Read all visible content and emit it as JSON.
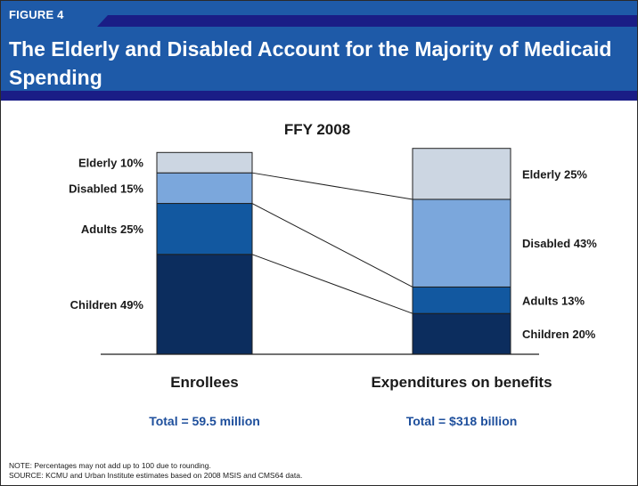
{
  "header": {
    "figure_label": "FIGURE 4",
    "title": "The Elderly and Disabled Account for the Majority of Medicaid Spending"
  },
  "chart_data": {
    "type": "bar",
    "stacked": true,
    "percent": true,
    "title": "FFY 2008",
    "categories": [
      "Enrollees",
      "Expenditures on benefits"
    ],
    "totals": [
      "Total = 59.5 million",
      "Total = $318 billion"
    ],
    "series": [
      {
        "name": "Children",
        "values": [
          49,
          20
        ],
        "color": "#0c2d5e"
      },
      {
        "name": "Adults",
        "values": [
          25,
          13
        ],
        "color": "#1258a0"
      },
      {
        "name": "Disabled",
        "values": [
          15,
          43
        ],
        "color": "#7ba7dc"
      },
      {
        "name": "Elderly",
        "values": [
          10,
          25
        ],
        "color": "#ccd6e2"
      }
    ],
    "labels": [
      [
        "Children 49%",
        "Adults 25%",
        "Disabled 15%",
        "Elderly 10%"
      ],
      [
        "Children 20%",
        "Adults 13%",
        "Disabled 43%",
        "Elderly 25%"
      ]
    ],
    "ylim": [
      0,
      100
    ],
    "grid": false,
    "legend": "none"
  },
  "notes": {
    "note": "NOTE: Percentages may not add up to 100 due to rounding.",
    "source": "SOURCE: KCMU and Urban Institute estimates based on 2008 MSIS and CMS64 data."
  },
  "colors": {
    "header_blue": "#1e5aa8",
    "header_accent": "#1a1d86",
    "total_text": "#1e4f9c"
  }
}
